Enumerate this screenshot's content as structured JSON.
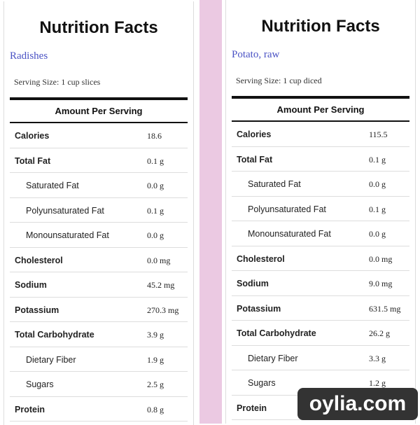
{
  "panels": [
    {
      "title": "Nutrition Facts",
      "food": "Radishes",
      "serving": "Serving Size: 1 cup slices",
      "header": "Amount Per Serving",
      "rows": [
        [
          "Calories",
          "18.6"
        ],
        [
          "Total Fat",
          "0.1 g"
        ],
        [
          "Saturated Fat",
          "0.0 g"
        ],
        [
          "Polyunsaturated Fat",
          "0.1 g"
        ],
        [
          "Monounsaturated Fat",
          "0.0 g"
        ],
        [
          "Cholesterol",
          "0.0 mg"
        ],
        [
          "Sodium",
          "45.2 mg"
        ],
        [
          "Potassium",
          "270.3 mg"
        ],
        [
          "Total Carbohydrate",
          "3.9 g"
        ],
        [
          "Dietary Fiber",
          "1.9 g"
        ],
        [
          "Sugars",
          "2.5 g"
        ],
        [
          "Protein",
          "0.8 g"
        ]
      ]
    },
    {
      "title": "Nutrition Facts",
      "food": "Potato, raw",
      "serving": "Serving Size: 1 cup diced",
      "header": "Amount Per Serving",
      "rows": [
        [
          "Calories",
          "115.5"
        ],
        [
          "Total Fat",
          "0.1 g"
        ],
        [
          "Saturated Fat",
          "0.0 g"
        ],
        [
          "Polyunsaturated Fat",
          "0.1 g"
        ],
        [
          "Monounsaturated Fat",
          "0.0 g"
        ],
        [
          "Cholesterol",
          "0.0 mg"
        ],
        [
          "Sodium",
          "9.0 mg"
        ],
        [
          "Potassium",
          "631.5 mg"
        ],
        [
          "Total Carbohydrate",
          "26.2 g"
        ],
        [
          "Dietary Fiber",
          "3.3 g"
        ],
        [
          "Sugars",
          "1.2 g"
        ],
        [
          "Protein",
          ""
        ]
      ]
    }
  ],
  "watermark": "oylia.com"
}
